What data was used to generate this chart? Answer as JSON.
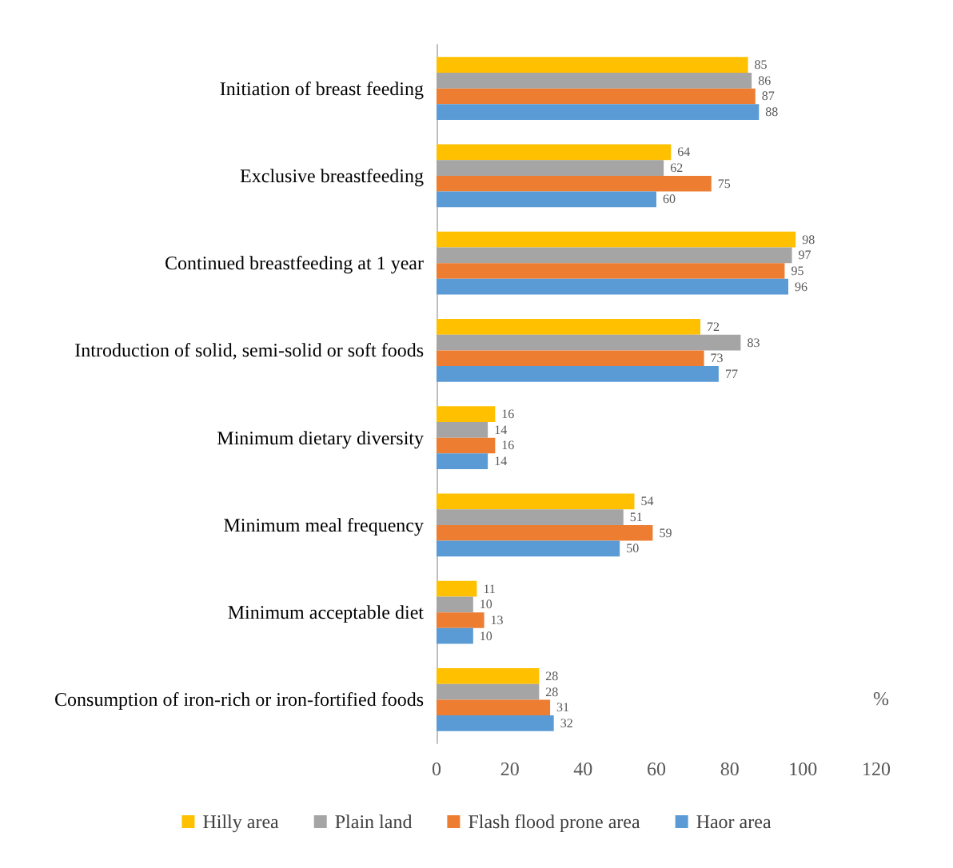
{
  "chart_data": {
    "type": "bar",
    "orientation": "horizontal",
    "xlabel": "%",
    "categories": [
      "Initiation of breast feeding",
      "Exclusive breastfeeding",
      "Continued breastfeeding at 1 year",
      "Introduction of solid, semi-solid or soft foods",
      "Minimum dietary diversity",
      "Minimum meal frequency",
      "Minimum acceptable diet",
      "Consumption of iron-rich or iron-fortified foods"
    ],
    "series": [
      {
        "name": "Hilly area",
        "color": "#ffc000",
        "values": [
          85,
          64,
          98,
          72,
          16,
          54,
          11,
          28
        ]
      },
      {
        "name": "Plain land",
        "color": "#a5a5a5",
        "values": [
          86,
          62,
          97,
          83,
          14,
          51,
          10,
          28
        ]
      },
      {
        "name": "Flash flood prone area",
        "color": "#ed7d31",
        "values": [
          87,
          75,
          95,
          73,
          16,
          59,
          13,
          31
        ]
      },
      {
        "name": "Haor area",
        "color": "#5b9bd5",
        "values": [
          88,
          60,
          96,
          77,
          14,
          50,
          10,
          32
        ]
      }
    ],
    "xlim": [
      0,
      120
    ],
    "xticks": [
      0,
      20,
      40,
      60,
      80,
      100,
      120
    ],
    "data_labels": true,
    "grid": false,
    "legend": "bottom"
  }
}
